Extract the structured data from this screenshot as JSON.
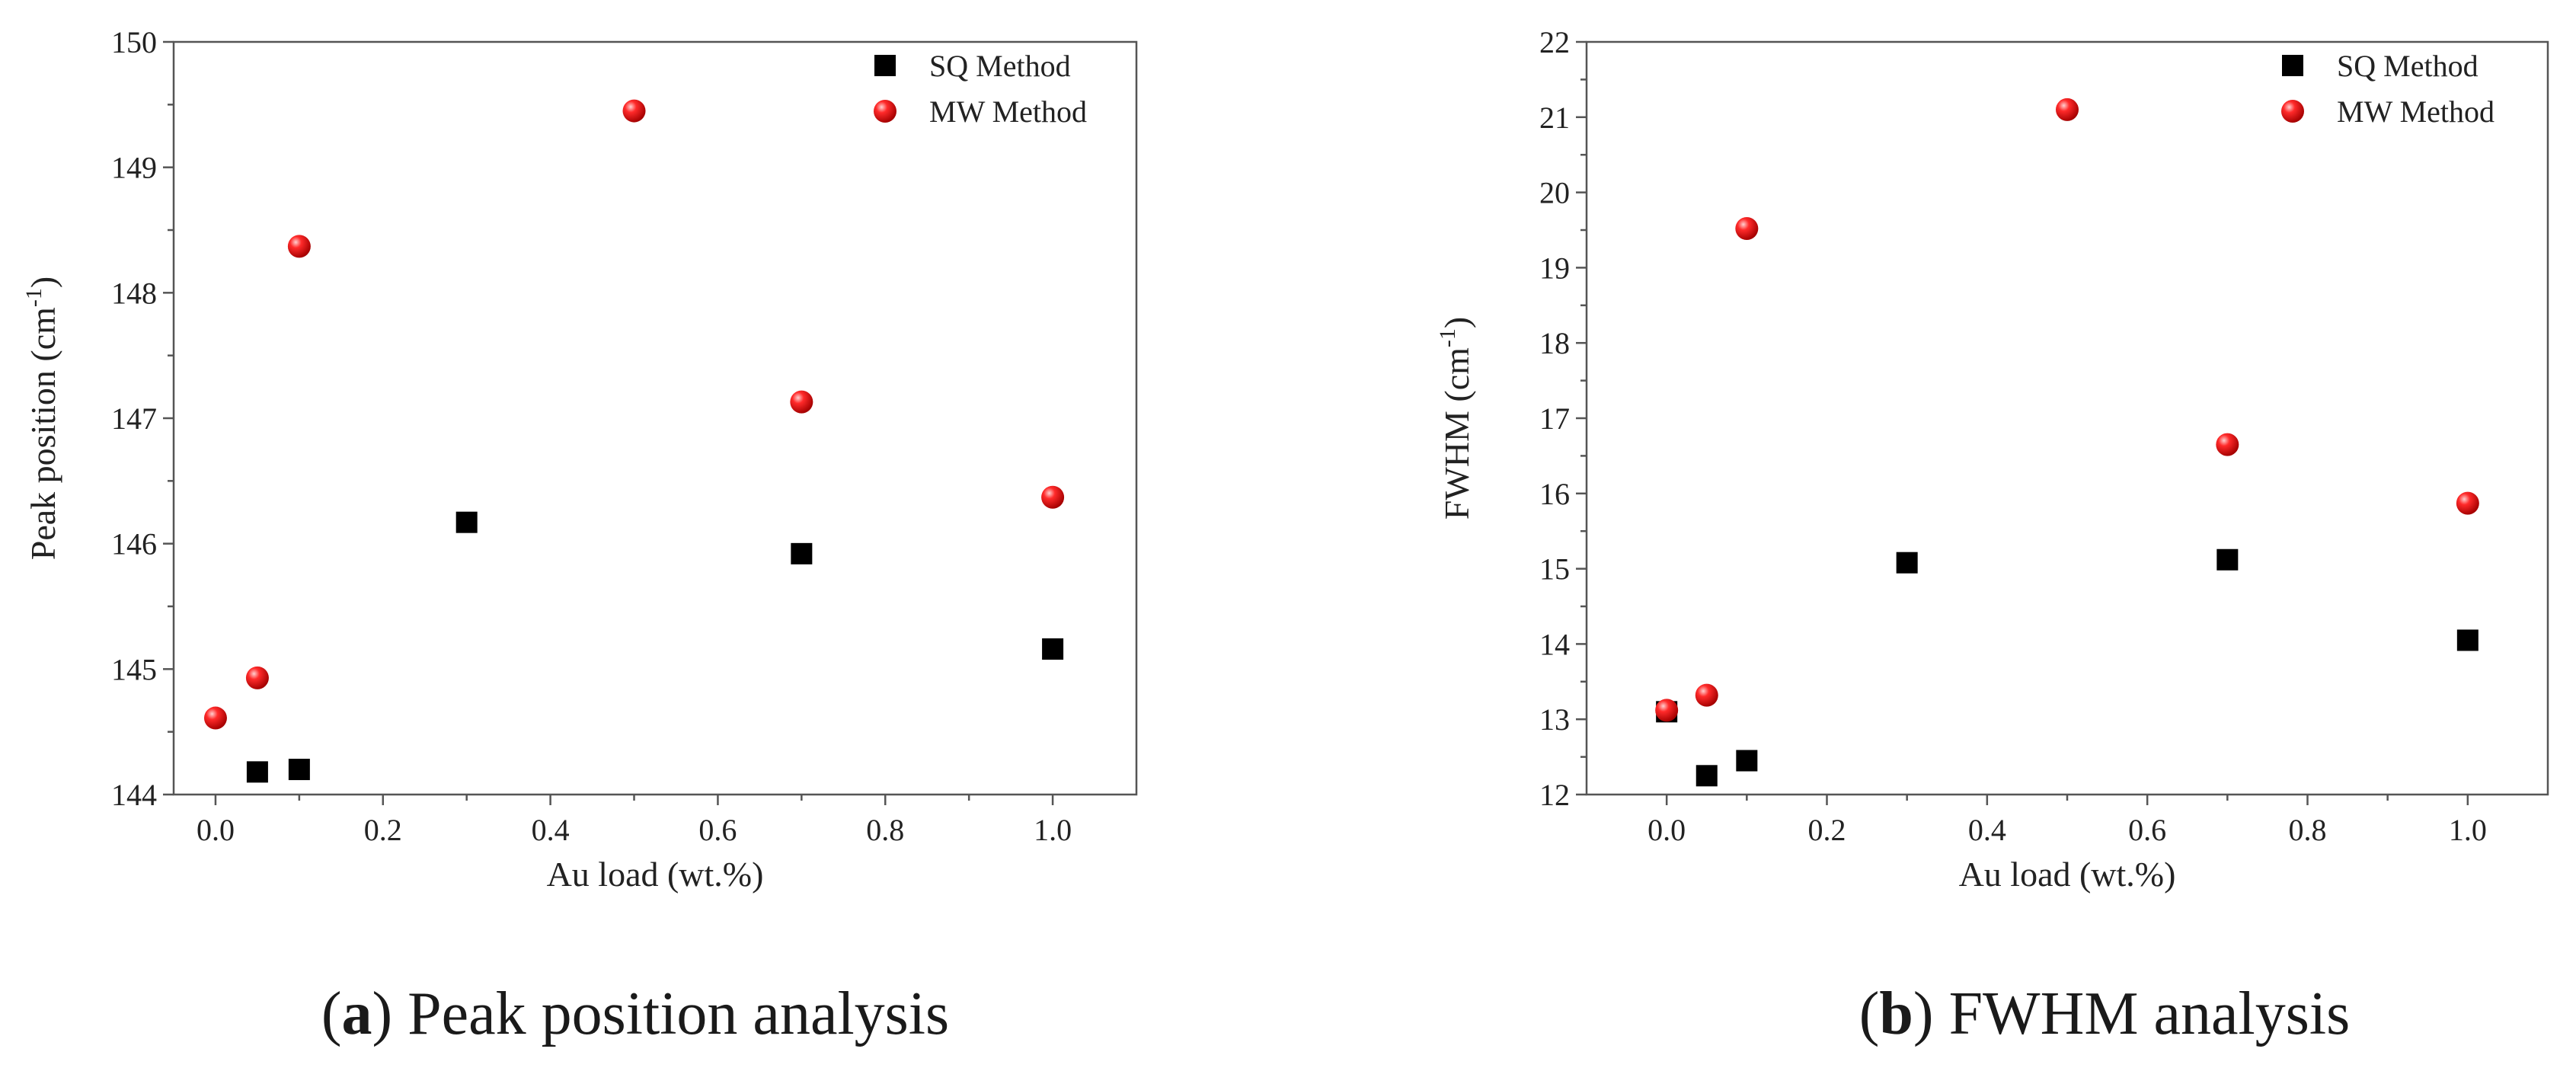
{
  "chart_data": [
    {
      "type": "scatter",
      "id": "a",
      "title": "",
      "xlabel": "Au load (wt.%)",
      "ylabel": "Peak position (cm",
      "ylabel_sup": "-1",
      "ylabel_close": ")",
      "xlim": [
        -0.05,
        1.1
      ],
      "ylim": [
        144,
        150
      ],
      "xticks": [
        0.0,
        0.2,
        0.4,
        0.6,
        0.8,
        1.0
      ],
      "xtick_labels": [
        "0.0",
        "0.2",
        "0.4",
        "0.6",
        "0.8",
        "1.0"
      ],
      "yticks": [
        144,
        145,
        146,
        147,
        148,
        149,
        150
      ],
      "ytick_labels": [
        "144",
        "145",
        "146",
        "147",
        "148",
        "149",
        "150"
      ],
      "legend_position": "top-right",
      "series": [
        {
          "name": "SQ Method",
          "marker": "square",
          "color": "#000000",
          "x": [
            0.05,
            0.1,
            0.3,
            0.7,
            1.0
          ],
          "y": [
            144.18,
            144.2,
            146.17,
            145.92,
            145.16
          ]
        },
        {
          "name": "MW Method",
          "marker": "circle",
          "color": "#ee1111",
          "x": [
            0.0,
            0.05,
            0.1,
            0.5,
            0.7,
            1.0
          ],
          "y": [
            144.61,
            144.93,
            148.37,
            149.45,
            147.13,
            146.37
          ]
        }
      ],
      "caption_letter": "a",
      "caption_text": "Peak position analysis"
    },
    {
      "type": "scatter",
      "id": "b",
      "title": "",
      "xlabel": "Au load (wt.%)",
      "ylabel": "FWHM (cm",
      "ylabel_sup": "-1",
      "ylabel_close": ")",
      "xlim": [
        -0.1,
        1.1
      ],
      "ylim": [
        12,
        22
      ],
      "xticks": [
        0.0,
        0.2,
        0.4,
        0.6,
        0.8,
        1.0
      ],
      "xtick_labels": [
        "0.0",
        "0.2",
        "0.4",
        "0.6",
        "0.8",
        "1.0"
      ],
      "yticks": [
        12,
        13,
        14,
        15,
        16,
        17,
        18,
        19,
        20,
        21,
        22
      ],
      "ytick_labels": [
        "12",
        "13",
        "14",
        "15",
        "16",
        "17",
        "18",
        "19",
        "20",
        "21",
        "22"
      ],
      "legend_position": "top-right",
      "series": [
        {
          "name": "SQ Method",
          "marker": "square",
          "color": "#000000",
          "x": [
            0.0,
            0.05,
            0.1,
            0.3,
            0.7,
            1.0
          ],
          "y": [
            13.1,
            12.25,
            12.45,
            15.08,
            15.12,
            14.05
          ]
        },
        {
          "name": "MW Method",
          "marker": "circle",
          "color": "#ee1111",
          "x": [
            0.0,
            0.05,
            0.1,
            0.5,
            0.7,
            1.0
          ],
          "y": [
            13.12,
            13.32,
            19.52,
            21.1,
            16.65,
            15.87
          ]
        }
      ],
      "caption_letter": "b",
      "caption_text": "FWHM analysis"
    }
  ]
}
